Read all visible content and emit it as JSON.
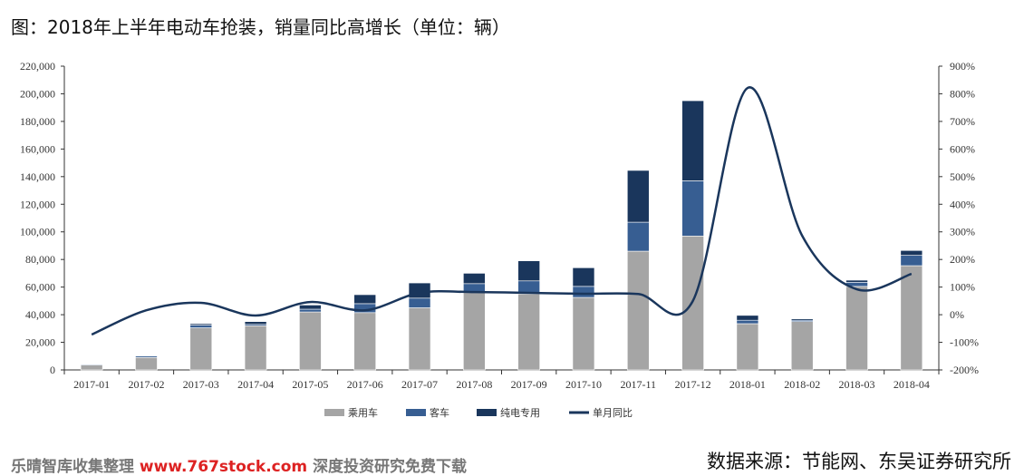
{
  "title": "图：2018年上半年电动车抢装，销量同比高增长（单位：辆）",
  "source": "数据来源：节能网、东吴证券研究所",
  "watermark": {
    "left": "乐晴智库收集整理",
    "url": "www.767stock.com",
    "right": "深度投资研究免费下载"
  },
  "chart_data": {
    "type": "bar",
    "title": "2018年上半年电动车抢装，销量同比高增长（单位：辆）",
    "categories": [
      "2017-01",
      "2017-02",
      "2017-03",
      "2017-04",
      "2017-05",
      "2017-06",
      "2017-07",
      "2017-08",
      "2017-09",
      "2017-10",
      "2017-11",
      "2017-12",
      "2018-01",
      "2018-02",
      "2018-03",
      "2018-04"
    ],
    "series": [
      {
        "name": "乘用车",
        "kind": "stacked-bar",
        "axis": "left",
        "color": "#a5a5a5",
        "values": [
          3500,
          9000,
          30500,
          32000,
          42000,
          41500,
          45000,
          56500,
          55000,
          52500,
          86000,
          97000,
          33500,
          35000,
          60500,
          75500
        ]
      },
      {
        "name": "客车",
        "kind": "stacked-bar",
        "axis": "left",
        "color": "#375e92",
        "values": [
          500,
          1000,
          2000,
          1000,
          2000,
          6500,
          7000,
          6000,
          9500,
          8000,
          21000,
          40000,
          2500,
          1000,
          3000,
          7500
        ]
      },
      {
        "name": "纯电专用",
        "kind": "stacked-bar",
        "axis": "left",
        "color": "#1a365c",
        "values": [
          0,
          0,
          1000,
          2000,
          3000,
          6500,
          11000,
          7500,
          14500,
          13500,
          37500,
          58000,
          3500,
          1000,
          1500,
          3500
        ]
      },
      {
        "name": "单月同比",
        "kind": "line",
        "axis": "right",
        "color": "#1a365c",
        "values": [
          -72,
          16,
          43,
          -3,
          46,
          16,
          79,
          82,
          79,
          76,
          75,
          50,
          821,
          286,
          92,
          148
        ]
      }
    ],
    "yleft": {
      "ylim": [
        0,
        220000
      ],
      "ticks": [
        "0",
        "20,000",
        "40,000",
        "60,000",
        "80,000",
        "100,000",
        "120,000",
        "140,000",
        "160,000",
        "180,000",
        "200,000",
        "220,000"
      ]
    },
    "yright": {
      "ylim": [
        -200,
        900
      ],
      "ticks": [
        "-200%",
        "-100%",
        "0%",
        "100%",
        "200%",
        "300%",
        "400%",
        "500%",
        "600%",
        "700%",
        "800%",
        "900%"
      ]
    },
    "legend": "bottom"
  }
}
